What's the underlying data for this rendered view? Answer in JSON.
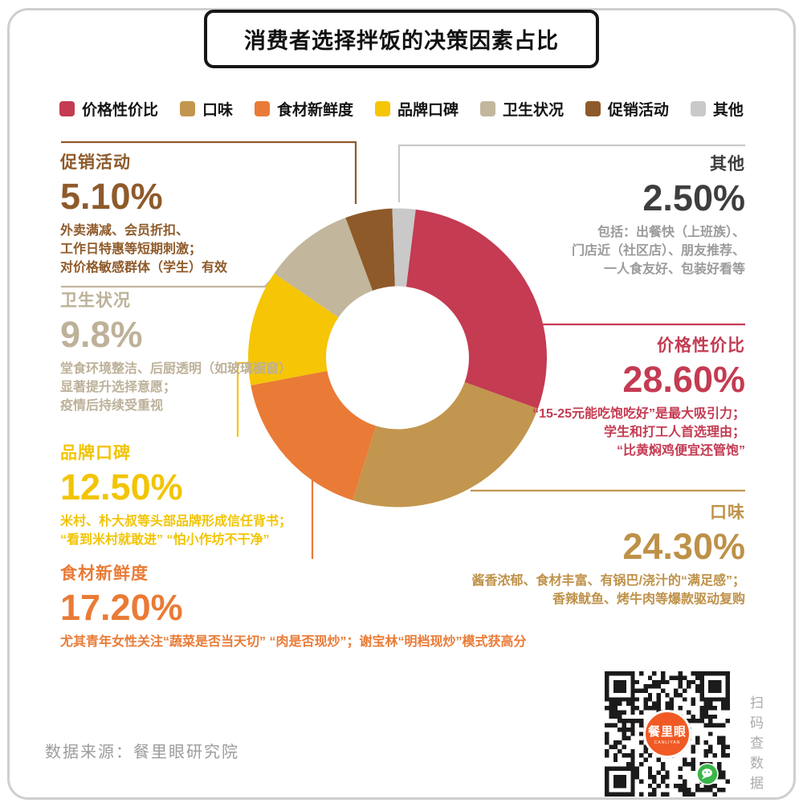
{
  "title": "消费者选择拌饭的决策因素占比",
  "legend": [
    {
      "label": "价格性价比",
      "color": "#C43B52"
    },
    {
      "label": "口味",
      "color": "#C2964E"
    },
    {
      "label": "食材新鲜度",
      "color": "#E97B36"
    },
    {
      "label": "品牌口碑",
      "color": "#F5C506"
    },
    {
      "label": "卫生状况",
      "color": "#C2B69D"
    },
    {
      "label": "促销活动",
      "color": "#8E5A2A"
    },
    {
      "label": "其他",
      "color": "#C9C9C9"
    }
  ],
  "chart_data": {
    "type": "pie",
    "donut": true,
    "title": "消费者选择拌饭的决策因素占比",
    "start_angle_clockwise_from_top_deg": 7,
    "slices": [
      {
        "label": "价格性价比",
        "value": 28.6,
        "display": "28.60%",
        "color": "#C43B52"
      },
      {
        "label": "口味",
        "value": 24.3,
        "display": "24.30%",
        "color": "#C2964E"
      },
      {
        "label": "食材新鲜度",
        "value": 17.2,
        "display": "17.20%",
        "color": "#E97B36"
      },
      {
        "label": "品牌口碑",
        "value": 12.5,
        "display": "12.50%",
        "color": "#F5C506"
      },
      {
        "label": "卫生状况",
        "value": 9.8,
        "display": "9.8%",
        "color": "#C2B69D"
      },
      {
        "label": "促销活动",
        "value": 5.1,
        "display": "5.10%",
        "color": "#8E5A2A"
      },
      {
        "label": "其他",
        "value": 2.5,
        "display": "2.50%",
        "color": "#C9C9C9"
      }
    ]
  },
  "annotations": {
    "promo": {
      "heading": "促销活动",
      "value": "5.10%",
      "color": "#8E5A2A",
      "desc": [
        "外卖满减、会员折扣、",
        "工作日特惠等短期刺激；",
        "对价格敏感群体（学生）有效"
      ]
    },
    "hygiene": {
      "heading": "卫生状况",
      "value": "9.8%",
      "color": "#BDB199",
      "desc": [
        "堂食环境整洁、后厨透明（如玻璃橱窗）",
        "显著提升选择意愿；",
        "疫情后持续受重视"
      ]
    },
    "brand": {
      "heading": "品牌口碑",
      "value": "12.50%",
      "color": "#F2C403",
      "desc": [
        "米村、朴大叔等头部品牌形成信任背书；",
        "“看到米村就敢进” “怕小作坊不干净”"
      ]
    },
    "fresh": {
      "heading": "食材新鲜度",
      "value": "17.20%",
      "color": "#E97B36",
      "desc": [
        "尤其青年女性关注“蔬菜是否当天切” “肉是否现炒”；谢宝林“明档现炒”模式获高分"
      ]
    },
    "other": {
      "heading": "其他",
      "value": "2.50%",
      "color": "#3E3E3E",
      "desc_color": "#9B9B9B",
      "desc": [
        "包括：出餐快（上班族）、",
        "门店近（社区店）、朋友推荐、",
        "一人食友好、包装好看等"
      ]
    },
    "price": {
      "heading": "价格性价比",
      "value": "28.60%",
      "color": "#C43B52",
      "desc": [
        "“15-25元能吃饱吃好”是最大吸引力；",
        "学生和打工人首选理由；",
        "“比黄焖鸡便宜还管饱”"
      ]
    },
    "taste": {
      "heading": "口味",
      "value": "24.30%",
      "color": "#BE9148",
      "desc": [
        "酱香浓郁、食材丰富、有锅巴/浇汁的“满足感”；",
        "香辣鱿鱼、烤牛肉等爆款驱动复购"
      ]
    }
  },
  "footer": {
    "source": "数据来源：餐里眼研究院"
  },
  "qr": {
    "logo_text": "餐里眼",
    "logo_subtext": "CANLIYAN",
    "caption": "扫码查数据",
    "logo_color": "#F15A24",
    "wechat_green": "#3CB54A"
  }
}
